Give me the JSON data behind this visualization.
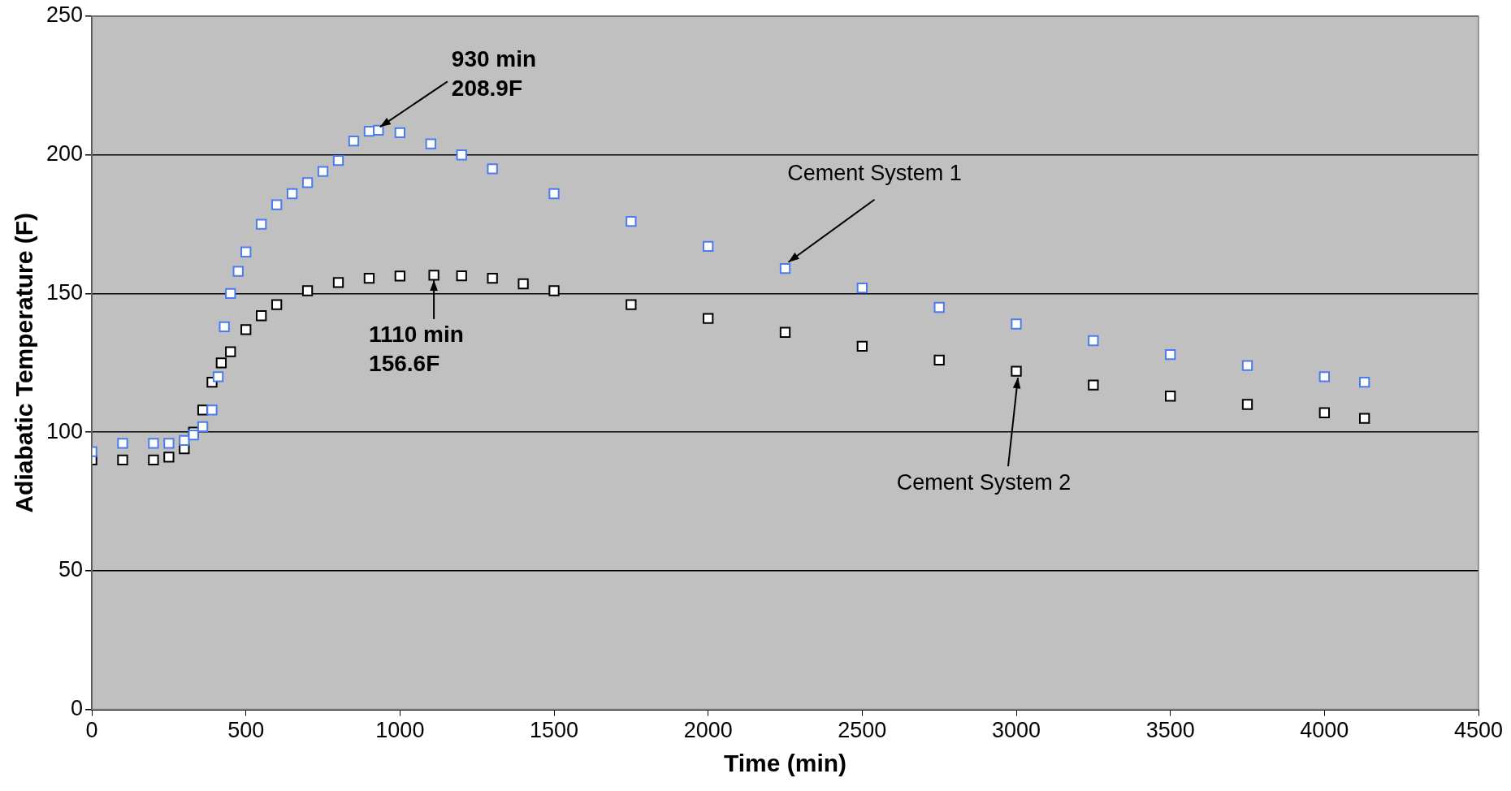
{
  "chart_data": {
    "type": "scatter",
    "xlabel": "Time (min)",
    "ylabel": "Adiabatic Temperature (F)",
    "xlim": [
      0,
      4500
    ],
    "xticks": [
      0,
      500,
      1000,
      1500,
      2000,
      2500,
      3000,
      3500,
      4000,
      4500
    ],
    "ylim": [
      0,
      250
    ],
    "yticks": [
      0,
      50,
      100,
      150,
      200,
      250
    ],
    "grid": "y",
    "marker": "square",
    "legend": false,
    "series": [
      {
        "name": "Cement System 1",
        "color": "#4a7bf0",
        "x": [
          0,
          100,
          200,
          250,
          300,
          330,
          360,
          390,
          410,
          430,
          450,
          475,
          500,
          550,
          600,
          650,
          700,
          750,
          800,
          850,
          900,
          930,
          1000,
          1100,
          1200,
          1300,
          1500,
          1750,
          2000,
          2250,
          2500,
          2750,
          3000,
          3250,
          3500,
          3750,
          4000,
          4130
        ],
        "values": [
          93,
          96,
          96,
          96,
          97,
          99,
          102,
          108,
          120,
          138,
          150,
          158,
          165,
          175,
          182,
          186,
          190,
          194,
          198,
          205,
          208.5,
          208.9,
          208,
          204,
          200,
          195,
          186,
          176,
          167,
          159,
          152,
          145,
          139,
          133,
          128,
          124,
          120,
          118
        ]
      },
      {
        "name": "Cement System 2",
        "color": "#000000",
        "x": [
          0,
          100,
          200,
          250,
          300,
          330,
          360,
          390,
          420,
          450,
          500,
          550,
          600,
          700,
          800,
          900,
          1000,
          1110,
          1200,
          1300,
          1400,
          1500,
          1750,
          2000,
          2250,
          2500,
          2750,
          3000,
          3250,
          3500,
          3750,
          4000,
          4130
        ],
        "values": [
          90,
          90,
          90,
          91,
          94,
          100,
          108,
          118,
          125,
          129,
          137,
          142,
          146,
          151,
          154,
          155.5,
          156.3,
          156.6,
          156.4,
          155.5,
          153.5,
          151,
          146,
          141,
          136,
          131,
          126,
          122,
          117,
          113,
          110,
          107,
          105
        ]
      }
    ],
    "annotations": [
      {
        "text": "930 min\n208.9F",
        "x": 930,
        "y": 208.9
      },
      {
        "text": "1110 min\n156.6F",
        "x": 1110,
        "y": 156.6
      }
    ]
  }
}
